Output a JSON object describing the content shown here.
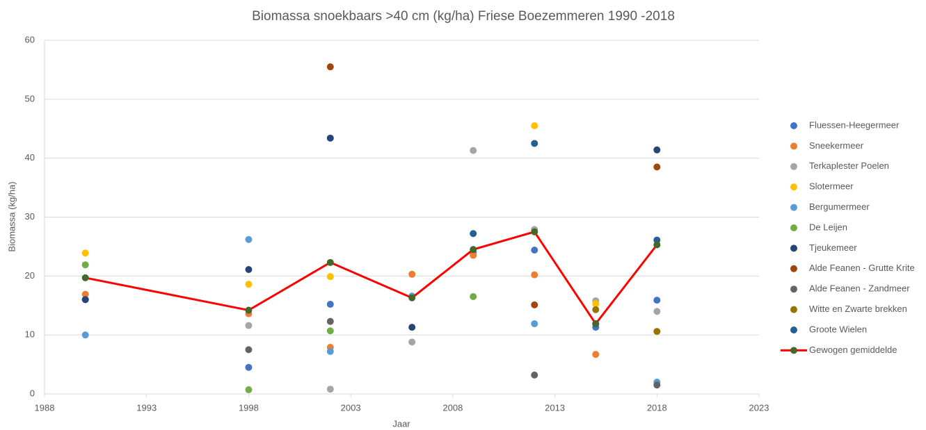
{
  "chart_data": {
    "type": "scatter",
    "title": "Biomassa snoekbaars >40 cm (kg/ha) Friese Boezemmeren  1990 -2018",
    "xlabel": "Jaar",
    "ylabel": "Biomassa (kg/ha)",
    "x": [
      1990,
      1998,
      2002,
      2006,
      2009,
      2012,
      2015,
      2018
    ],
    "xlim": [
      1988,
      2023
    ],
    "xticks": [
      1988,
      1993,
      1998,
      2003,
      2008,
      2013,
      2018,
      2023
    ],
    "ylim": [
      0,
      60
    ],
    "yticks": [
      0,
      10,
      20,
      30,
      40,
      50,
      60
    ],
    "grid": true,
    "legend": "right",
    "series": [
      {
        "name": "Fluessen-Heegermeer",
        "color": "#4472c4",
        "values": [
          16,
          4.5,
          15.2,
          16.5,
          24,
          24.4,
          11.3,
          15.9
        ]
      },
      {
        "name": "Sneekermeer",
        "color": "#ed7d31",
        "values": [
          16.9,
          13.6,
          7.9,
          20.3,
          23.5,
          20.2,
          6.7,
          null
        ]
      },
      {
        "name": "Terkaplester Poelen",
        "color": "#a5a5a5",
        "values": [
          null,
          11.6,
          0.8,
          8.8,
          41.3,
          27.9,
          15.8,
          14.0
        ]
      },
      {
        "name": "Slotermeer",
        "color": "#ffc000",
        "values": [
          23.9,
          18.6,
          19.9,
          null,
          null,
          45.5,
          15.3,
          null
        ]
      },
      {
        "name": "Bergumermeer",
        "color": "#5b9bd5",
        "values": [
          10.0,
          26.2,
          7.2,
          16.6,
          null,
          11.9,
          null,
          2.0
        ]
      },
      {
        "name": "De Leijen",
        "color": "#70ad47",
        "values": [
          21.9,
          0.7,
          10.7,
          null,
          16.5,
          null,
          null,
          null
        ]
      },
      {
        "name": "Tjeukemeer",
        "color": "#264478",
        "values": [
          16.0,
          21.1,
          43.4,
          11.3,
          null,
          null,
          null,
          41.4
        ]
      },
      {
        "name": "Alde Feanen - Grutte Krite",
        "color": "#9e480e",
        "values": [
          null,
          null,
          55.5,
          null,
          null,
          15.1,
          null,
          38.5
        ]
      },
      {
        "name": "Alde Feanen - Zandmeer",
        "color": "#636363",
        "values": [
          null,
          7.5,
          12.3,
          null,
          null,
          3.2,
          null,
          1.5
        ]
      },
      {
        "name": "Witte en Zwarte brekken",
        "color": "#997300",
        "values": [
          null,
          null,
          null,
          null,
          null,
          null,
          14.3,
          10.6
        ]
      },
      {
        "name": "Groote Wielen",
        "color": "#255e91",
        "values": [
          null,
          null,
          null,
          null,
          27.2,
          42.5,
          11.9,
          26.1
        ]
      },
      {
        "name": "Gewogen gemiddelde",
        "color": "#43682b",
        "line_color": "#ff0000",
        "values": [
          19.7,
          14.2,
          22.3,
          16.3,
          24.5,
          27.5,
          11.9,
          25.3
        ]
      }
    ]
  }
}
